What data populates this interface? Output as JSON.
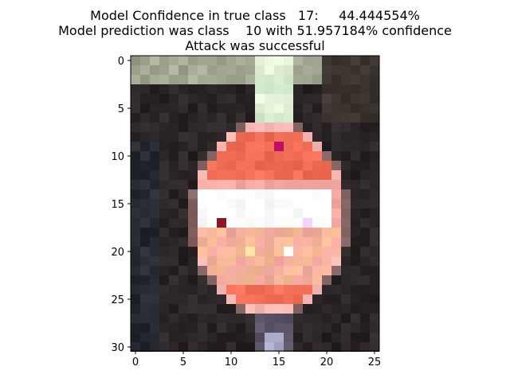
{
  "figure": {
    "title_lines": [
      "Model Confidence in true class   17:     44.444554%",
      "Model prediction was class    10 with 51.957184% confidence",
      "Attack was successful"
    ]
  },
  "image": {
    "rows": 31,
    "cols": 26,
    "subject": "pixelated stop-sign style image with white horizontal band and red upper half on dark background"
  },
  "axes": {
    "x_ticks": [
      "0",
      "5",
      "10",
      "15",
      "20",
      "25"
    ],
    "y_ticks": [
      "0",
      "5",
      "10",
      "15",
      "20",
      "25",
      "30"
    ]
  },
  "colors": {
    "background_dark": "#2a2426",
    "sign_red": "#f06a52",
    "sign_pink": "#f3a9a2",
    "sign_white": "#ffffff",
    "sign_peach": "#f7c18d",
    "sign_lavender": "#e9c7f7",
    "pole": "#7d6d86",
    "sky_green": "#99a08a",
    "dark_red": "#8d1a2c",
    "magenta": "#c5156f"
  }
}
